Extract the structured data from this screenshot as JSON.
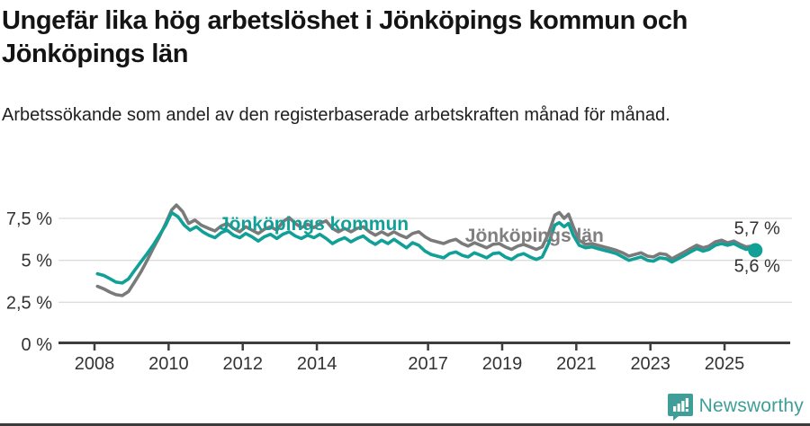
{
  "title": "Ungefär lika hög arbetslöshet i Jönköpings kommun och Jönköpings län",
  "subtitle": "Arbetssökande som andel av den registerbaserade arbetskraften månad för månad.",
  "branding": {
    "logo_text": "Newsworthy",
    "logo_icon": "newsworthy-badge-icon",
    "logo_color": "#3f9e97"
  },
  "colors": {
    "kommun_line": "#11a097",
    "lan_line": "#7a7a7a",
    "lan_label": "#7f7f7f",
    "axis": "#3d3d3d",
    "grid": "#dcdcdc",
    "tick_text": "#333333"
  },
  "chart_data": {
    "type": "line",
    "title": "Ungefär lika hög arbetslöshet i Jönköpings kommun och Jönköpings län",
    "xlabel": "",
    "ylabel": "Arbetssökande som andel av den registerbaserade arbetskraften",
    "xlim": [
      2007.0,
      2026.8
    ],
    "ylim": [
      0,
      8.6
    ],
    "grid": "horizontal",
    "legend_position": "inline-annotations",
    "x_ticks": [
      {
        "year": 2008,
        "label": "2008"
      },
      {
        "year": 2010,
        "label": "2010"
      },
      {
        "year": 2012,
        "label": "2012"
      },
      {
        "year": 2014,
        "label": "2014"
      },
      {
        "year": 2017,
        "label": "2017"
      },
      {
        "year": 2019,
        "label": "2019"
      },
      {
        "year": 2021,
        "label": "2021"
      },
      {
        "year": 2023,
        "label": "2023"
      },
      {
        "year": 2025,
        "label": "2025"
      }
    ],
    "y_ticks": [
      {
        "value": 0,
        "label": "0 %"
      },
      {
        "value": 2.5,
        "label": "2,5 %"
      },
      {
        "value": 5,
        "label": "5 %"
      },
      {
        "value": 7.5,
        "label": "7,5 %"
      }
    ],
    "series_labels": [
      {
        "text": "Jönköpings kommun",
        "color": "#11a097",
        "x": 2011.35,
        "y": 6.8
      },
      {
        "text": "Jönköpings län",
        "color": "#7f7f7f",
        "x": 2018.0,
        "y": 6.1
      }
    ],
    "series": [
      {
        "name": "Jönköpings kommun",
        "color": "#11a097",
        "end_label": "5,6 %",
        "end_label_position": "below",
        "end_value": 5.6,
        "points": [
          [
            2008.08,
            4.2
          ],
          [
            2008.25,
            4.1
          ],
          [
            2008.42,
            3.9
          ],
          [
            2008.58,
            3.7
          ],
          [
            2008.75,
            3.65
          ],
          [
            2008.92,
            3.9
          ],
          [
            2009.08,
            4.4
          ],
          [
            2009.25,
            4.9
          ],
          [
            2009.42,
            5.4
          ],
          [
            2009.58,
            5.9
          ],
          [
            2009.75,
            6.5
          ],
          [
            2009.92,
            7.1
          ],
          [
            2010.08,
            7.85
          ],
          [
            2010.25,
            7.6
          ],
          [
            2010.42,
            7.1
          ],
          [
            2010.58,
            6.8
          ],
          [
            2010.75,
            7.0
          ],
          [
            2010.92,
            6.7
          ],
          [
            2011.08,
            6.5
          ],
          [
            2011.25,
            6.35
          ],
          [
            2011.42,
            6.65
          ],
          [
            2011.58,
            6.8
          ],
          [
            2011.75,
            6.5
          ],
          [
            2011.92,
            6.35
          ],
          [
            2012.08,
            6.6
          ],
          [
            2012.25,
            6.4
          ],
          [
            2012.42,
            6.15
          ],
          [
            2012.58,
            6.4
          ],
          [
            2012.75,
            6.55
          ],
          [
            2012.92,
            6.3
          ],
          [
            2013.08,
            6.55
          ],
          [
            2013.25,
            6.7
          ],
          [
            2013.42,
            6.45
          ],
          [
            2013.58,
            6.3
          ],
          [
            2013.75,
            6.5
          ],
          [
            2013.92,
            6.35
          ],
          [
            2014.08,
            6.55
          ],
          [
            2014.25,
            6.3
          ],
          [
            2014.42,
            6.0
          ],
          [
            2014.58,
            6.2
          ],
          [
            2014.75,
            6.35
          ],
          [
            2014.92,
            6.1
          ],
          [
            2015.08,
            6.3
          ],
          [
            2015.25,
            6.45
          ],
          [
            2015.42,
            6.15
          ],
          [
            2015.58,
            5.95
          ],
          [
            2015.75,
            6.2
          ],
          [
            2015.92,
            6.0
          ],
          [
            2016.08,
            6.25
          ],
          [
            2016.25,
            6.0
          ],
          [
            2016.42,
            5.75
          ],
          [
            2016.58,
            6.05
          ],
          [
            2016.75,
            5.9
          ],
          [
            2016.92,
            5.55
          ],
          [
            2017.08,
            5.35
          ],
          [
            2017.25,
            5.25
          ],
          [
            2017.42,
            5.15
          ],
          [
            2017.58,
            5.4
          ],
          [
            2017.75,
            5.5
          ],
          [
            2017.92,
            5.3
          ],
          [
            2018.08,
            5.2
          ],
          [
            2018.25,
            5.45
          ],
          [
            2018.42,
            5.3
          ],
          [
            2018.58,
            5.15
          ],
          [
            2018.75,
            5.4
          ],
          [
            2018.92,
            5.45
          ],
          [
            2019.08,
            5.2
          ],
          [
            2019.25,
            5.05
          ],
          [
            2019.42,
            5.3
          ],
          [
            2019.58,
            5.4
          ],
          [
            2019.75,
            5.2
          ],
          [
            2019.92,
            5.05
          ],
          [
            2020.08,
            5.2
          ],
          [
            2020.25,
            6.0
          ],
          [
            2020.42,
            7.1
          ],
          [
            2020.54,
            7.25
          ],
          [
            2020.67,
            7.0
          ],
          [
            2020.79,
            7.2
          ],
          [
            2020.92,
            6.5
          ],
          [
            2021.08,
            5.9
          ],
          [
            2021.25,
            5.75
          ],
          [
            2021.42,
            5.8
          ],
          [
            2021.58,
            5.7
          ],
          [
            2021.75,
            5.6
          ],
          [
            2021.92,
            5.5
          ],
          [
            2022.08,
            5.4
          ],
          [
            2022.25,
            5.2
          ],
          [
            2022.42,
            5.0
          ],
          [
            2022.58,
            5.1
          ],
          [
            2022.75,
            5.2
          ],
          [
            2022.92,
            5.0
          ],
          [
            2023.08,
            4.95
          ],
          [
            2023.25,
            5.15
          ],
          [
            2023.42,
            5.1
          ],
          [
            2023.58,
            4.9
          ],
          [
            2023.75,
            5.1
          ],
          [
            2023.92,
            5.3
          ],
          [
            2024.08,
            5.5
          ],
          [
            2024.25,
            5.7
          ],
          [
            2024.42,
            5.55
          ],
          [
            2024.58,
            5.65
          ],
          [
            2024.75,
            5.9
          ],
          [
            2024.92,
            6.0
          ],
          [
            2025.08,
            5.9
          ],
          [
            2025.25,
            6.0
          ],
          [
            2025.42,
            5.8
          ],
          [
            2025.58,
            5.65
          ],
          [
            2025.75,
            5.75
          ],
          [
            2025.83,
            5.6
          ]
        ]
      },
      {
        "name": "Jönköpings län",
        "color": "#7a7a7a",
        "end_label": "5,7 %",
        "end_label_position": "above",
        "end_value": 5.7,
        "points": [
          [
            2008.08,
            3.45
          ],
          [
            2008.25,
            3.3
          ],
          [
            2008.42,
            3.1
          ],
          [
            2008.58,
            2.95
          ],
          [
            2008.75,
            2.9
          ],
          [
            2008.92,
            3.15
          ],
          [
            2009.08,
            3.7
          ],
          [
            2009.25,
            4.3
          ],
          [
            2009.42,
            5.0
          ],
          [
            2009.58,
            5.7
          ],
          [
            2009.75,
            6.4
          ],
          [
            2009.92,
            7.2
          ],
          [
            2010.08,
            8.0
          ],
          [
            2010.21,
            8.3
          ],
          [
            2010.38,
            7.9
          ],
          [
            2010.54,
            7.2
          ],
          [
            2010.71,
            7.4
          ],
          [
            2010.88,
            7.1
          ],
          [
            2011.08,
            6.9
          ],
          [
            2011.25,
            6.75
          ],
          [
            2011.42,
            7.05
          ],
          [
            2011.58,
            7.2
          ],
          [
            2011.75,
            6.9
          ],
          [
            2011.92,
            6.7
          ],
          [
            2012.08,
            7.0
          ],
          [
            2012.25,
            6.8
          ],
          [
            2012.42,
            6.6
          ],
          [
            2012.58,
            6.85
          ],
          [
            2012.75,
            7.0
          ],
          [
            2012.92,
            6.8
          ],
          [
            2013.08,
            7.3
          ],
          [
            2013.25,
            7.55
          ],
          [
            2013.42,
            7.2
          ],
          [
            2013.58,
            6.95
          ],
          [
            2013.75,
            7.15
          ],
          [
            2013.92,
            6.95
          ],
          [
            2014.08,
            7.2
          ],
          [
            2014.25,
            7.35
          ],
          [
            2014.42,
            6.9
          ],
          [
            2014.58,
            6.7
          ],
          [
            2014.75,
            6.9
          ],
          [
            2014.92,
            6.7
          ],
          [
            2015.08,
            6.9
          ],
          [
            2015.25,
            7.0
          ],
          [
            2015.42,
            6.7
          ],
          [
            2015.58,
            6.5
          ],
          [
            2015.75,
            6.7
          ],
          [
            2015.92,
            6.5
          ],
          [
            2016.08,
            6.7
          ],
          [
            2016.25,
            6.5
          ],
          [
            2016.42,
            6.35
          ],
          [
            2016.58,
            6.6
          ],
          [
            2016.75,
            6.7
          ],
          [
            2016.92,
            6.4
          ],
          [
            2017.08,
            6.2
          ],
          [
            2017.25,
            6.1
          ],
          [
            2017.42,
            6.0
          ],
          [
            2017.58,
            6.15
          ],
          [
            2017.75,
            6.25
          ],
          [
            2017.92,
            6.0
          ],
          [
            2018.08,
            5.85
          ],
          [
            2018.25,
            6.05
          ],
          [
            2018.42,
            5.9
          ],
          [
            2018.58,
            5.75
          ],
          [
            2018.75,
            5.95
          ],
          [
            2018.92,
            6.0
          ],
          [
            2019.08,
            5.8
          ],
          [
            2019.25,
            5.65
          ],
          [
            2019.42,
            5.85
          ],
          [
            2019.58,
            5.95
          ],
          [
            2019.75,
            5.8
          ],
          [
            2019.92,
            5.65
          ],
          [
            2020.08,
            5.8
          ],
          [
            2020.25,
            6.6
          ],
          [
            2020.42,
            7.7
          ],
          [
            2020.54,
            7.85
          ],
          [
            2020.67,
            7.5
          ],
          [
            2020.79,
            7.75
          ],
          [
            2020.92,
            7.0
          ],
          [
            2021.08,
            6.2
          ],
          [
            2021.25,
            5.95
          ],
          [
            2021.42,
            6.0
          ],
          [
            2021.58,
            5.9
          ],
          [
            2021.75,
            5.8
          ],
          [
            2021.92,
            5.7
          ],
          [
            2022.08,
            5.6
          ],
          [
            2022.25,
            5.45
          ],
          [
            2022.42,
            5.25
          ],
          [
            2022.58,
            5.35
          ],
          [
            2022.75,
            5.45
          ],
          [
            2022.92,
            5.25
          ],
          [
            2023.08,
            5.2
          ],
          [
            2023.25,
            5.4
          ],
          [
            2023.42,
            5.35
          ],
          [
            2023.58,
            5.1
          ],
          [
            2023.75,
            5.3
          ],
          [
            2023.92,
            5.5
          ],
          [
            2024.08,
            5.7
          ],
          [
            2024.25,
            5.9
          ],
          [
            2024.42,
            5.75
          ],
          [
            2024.58,
            5.85
          ],
          [
            2024.75,
            6.1
          ],
          [
            2024.92,
            6.2
          ],
          [
            2025.08,
            6.05
          ],
          [
            2025.25,
            6.15
          ],
          [
            2025.42,
            5.95
          ],
          [
            2025.58,
            5.8
          ],
          [
            2025.75,
            5.85
          ],
          [
            2025.83,
            5.7
          ]
        ]
      }
    ]
  }
}
